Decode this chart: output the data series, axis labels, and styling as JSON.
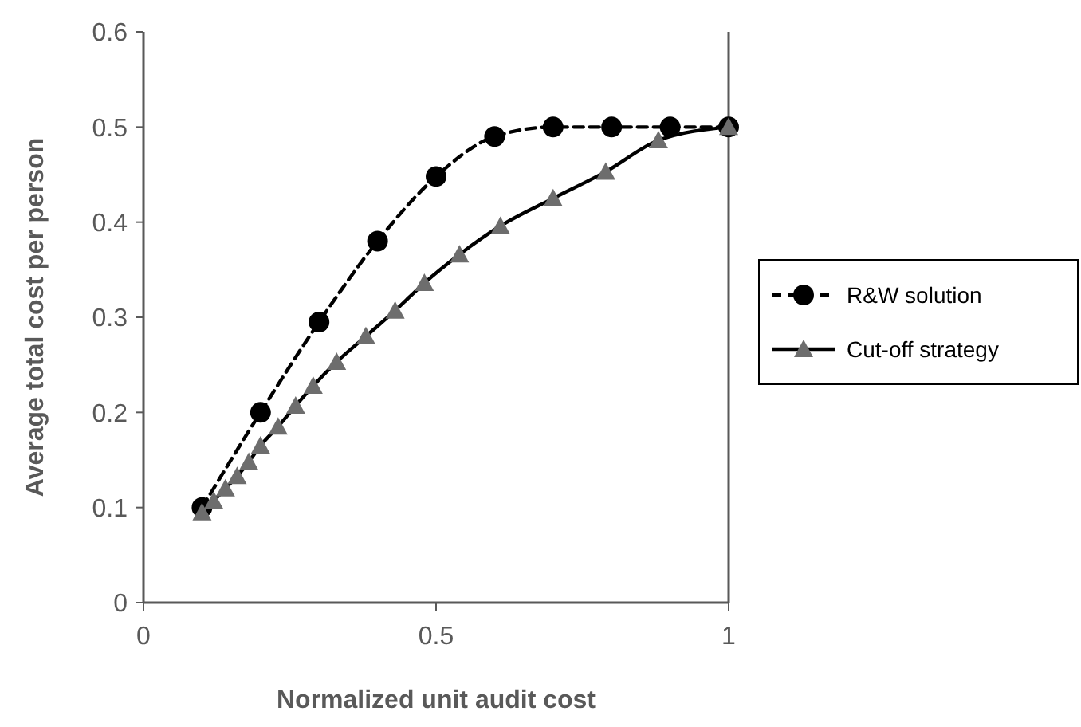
{
  "chart_data": {
    "type": "line",
    "xlabel": "Normalized unit audit cost",
    "ylabel": "Average total cost per person",
    "xlim": [
      0,
      1
    ],
    "xticks": [
      0,
      0.5,
      1
    ],
    "ylim": [
      0,
      0.6
    ],
    "yticks": [
      0,
      0.1,
      0.2,
      0.3,
      0.4,
      0.5,
      0.6
    ],
    "grid": false,
    "legend": "right",
    "series": [
      {
        "name": "R&W solution",
        "color": "#000000",
        "marker": "circle",
        "line_style": "dashed",
        "x": [
          0.1,
          0.2,
          0.3,
          0.4,
          0.5,
          0.6,
          0.7,
          0.8,
          0.9,
          1.0
        ],
        "values": [
          0.1,
          0.2,
          0.295,
          0.38,
          0.448,
          0.49,
          0.5,
          0.5,
          0.5,
          0.5
        ]
      },
      {
        "name": "Cut-off strategy",
        "color": "#000000",
        "marker": "triangle",
        "line_style": "solid",
        "x": [
          0.1,
          0.12,
          0.14,
          0.16,
          0.18,
          0.2,
          0.23,
          0.26,
          0.29,
          0.33,
          0.38,
          0.43,
          0.48,
          0.54,
          0.61,
          0.7,
          0.79,
          0.88,
          1.0
        ],
        "values": [
          0.095,
          0.107,
          0.12,
          0.133,
          0.148,
          0.165,
          0.185,
          0.207,
          0.228,
          0.253,
          0.28,
          0.307,
          0.336,
          0.366,
          0.396,
          0.425,
          0.453,
          0.486,
          0.5
        ]
      }
    ]
  }
}
